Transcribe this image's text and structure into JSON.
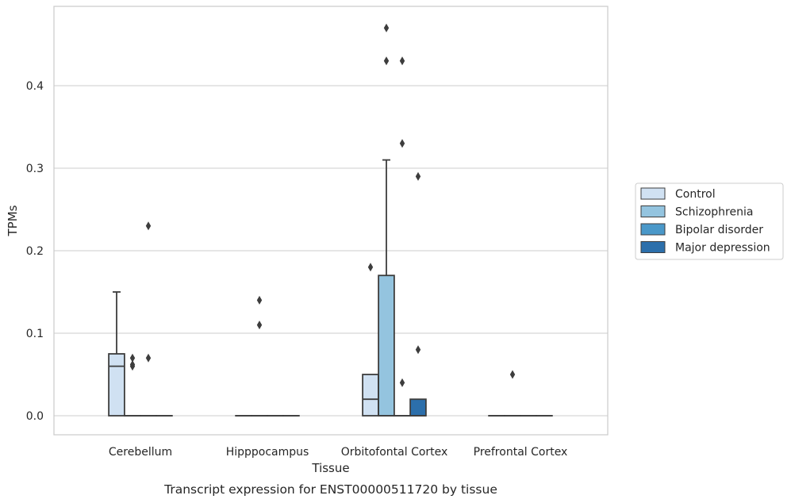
{
  "chart_data": {
    "type": "box",
    "title": "Transcript expression for ENST00000511720 by tissue",
    "xlabel": "Tissue",
    "ylabel": "TPMs",
    "ylim": [
      -0.023,
      0.49
    ],
    "yticks": [
      0.0,
      0.1,
      0.2,
      0.3,
      0.4
    ],
    "ytick_labels": [
      "0.0",
      "0.1",
      "0.2",
      "0.3",
      "0.4"
    ],
    "grid": "horizontal",
    "legend_position": "right",
    "categories": [
      "Cerebellum",
      "Hipppocampus",
      "Orbitofontal Cortex",
      "Prefrontal Cortex"
    ],
    "series": [
      {
        "name": "Control",
        "color": "#d0e1f2",
        "boxes": [
          {
            "q1": 0.0,
            "median": 0.06,
            "q3": 0.075,
            "whisker_low": 0.0,
            "whisker_high": 0.15,
            "outliers": []
          },
          {
            "q1": 0.0,
            "median": 0.0,
            "q3": 0.0,
            "whisker_low": 0.0,
            "whisker_high": 0.0,
            "outliers": []
          },
          {
            "q1": 0.0,
            "median": 0.02,
            "q3": 0.05,
            "whisker_low": 0.0,
            "whisker_high": 0.05,
            "outliers": [
              0.18
            ]
          },
          {
            "q1": 0.0,
            "median": 0.0,
            "q3": 0.0,
            "whisker_low": 0.0,
            "whisker_high": 0.0,
            "outliers": []
          }
        ]
      },
      {
        "name": "Schizophrenia",
        "color": "#94c4df",
        "boxes": [
          {
            "q1": 0.0,
            "median": 0.0,
            "q3": 0.0,
            "whisker_low": 0.0,
            "whisker_high": 0.0,
            "outliers": [
              0.06,
              0.062,
              0.07
            ]
          },
          {
            "q1": 0.0,
            "median": 0.0,
            "q3": 0.0,
            "whisker_low": 0.0,
            "whisker_high": 0.0,
            "outliers": [
              0.11,
              0.14
            ]
          },
          {
            "q1": 0.0,
            "median": 0.0,
            "q3": 0.17,
            "whisker_low": 0.0,
            "whisker_high": 0.31,
            "outliers": [
              0.43,
              0.47
            ]
          },
          {
            "q1": 0.0,
            "median": 0.0,
            "q3": 0.0,
            "whisker_low": 0.0,
            "whisker_high": 0.0,
            "outliers": [
              0.05
            ]
          }
        ]
      },
      {
        "name": "Bipolar disorder",
        "color": "#4a98c9",
        "boxes": [
          {
            "q1": 0.0,
            "median": 0.0,
            "q3": 0.0,
            "whisker_low": 0.0,
            "whisker_high": 0.0,
            "outliers": [
              0.07,
              0.23
            ]
          },
          {
            "q1": 0.0,
            "median": 0.0,
            "q3": 0.0,
            "whisker_low": 0.0,
            "whisker_high": 0.0,
            "outliers": []
          },
          {
            "q1": 0.0,
            "median": 0.0,
            "q3": 0.0,
            "whisker_low": 0.0,
            "whisker_high": 0.0,
            "outliers": [
              0.04,
              0.33,
              0.43
            ]
          },
          {
            "q1": 0.0,
            "median": 0.0,
            "q3": 0.0,
            "whisker_low": 0.0,
            "whisker_high": 0.0,
            "outliers": []
          }
        ]
      },
      {
        "name": "Major depression",
        "color": "#2c6fab",
        "boxes": [
          {
            "q1": 0.0,
            "median": 0.0,
            "q3": 0.0,
            "whisker_low": 0.0,
            "whisker_high": 0.0,
            "outliers": []
          },
          {
            "q1": 0.0,
            "median": 0.0,
            "q3": 0.0,
            "whisker_low": 0.0,
            "whisker_high": 0.0,
            "outliers": []
          },
          {
            "q1": 0.0,
            "median": 0.0,
            "q3": 0.02,
            "whisker_low": 0.0,
            "whisker_high": 0.02,
            "outliers": [
              0.08,
              0.29
            ]
          },
          {
            "q1": 0.0,
            "median": 0.0,
            "q3": 0.0,
            "whisker_low": 0.0,
            "whisker_high": 0.0,
            "outliers": []
          }
        ]
      }
    ]
  }
}
